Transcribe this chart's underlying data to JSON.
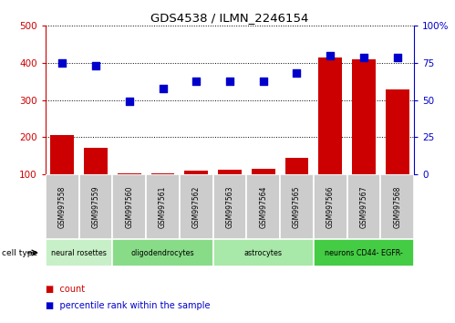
{
  "title": "GDS4538 / ILMN_2246154",
  "samples": [
    "GSM997558",
    "GSM997559",
    "GSM997560",
    "GSM997561",
    "GSM997562",
    "GSM997563",
    "GSM997564",
    "GSM997565",
    "GSM997566",
    "GSM997567",
    "GSM997568"
  ],
  "counts": [
    205,
    172,
    102,
    104,
    110,
    112,
    115,
    145,
    415,
    410,
    330
  ],
  "percentile_ranks": [
    75,
    73,
    49,
    58,
    63,
    63,
    63,
    68,
    80,
    79,
    79
  ],
  "ylim_left": [
    100,
    500
  ],
  "ylim_right": [
    0,
    100
  ],
  "yticks_left": [
    100,
    200,
    300,
    400,
    500
  ],
  "yticks_right": [
    0,
    25,
    50,
    75,
    100
  ],
  "cell_types": [
    {
      "label": "neural rosettes",
      "start": 0,
      "end": 2,
      "color": "#c8f0c8"
    },
    {
      "label": "oligodendrocytes",
      "start": 2,
      "end": 5,
      "color": "#88dc88"
    },
    {
      "label": "astrocytes",
      "start": 5,
      "end": 8,
      "color": "#a8e8a8"
    },
    {
      "label": "neurons CD44- EGFR-",
      "start": 8,
      "end": 11,
      "color": "#44cc44"
    }
  ],
  "bar_color": "#cc0000",
  "dot_color": "#0000cc",
  "bar_width": 0.7,
  "dot_size": 40,
  "left_tick_color": "#cc0000",
  "right_tick_color": "#0000cc",
  "bg_color": "#ffffff",
  "sample_bg_color": "#cccccc",
  "legend_count_label": "count",
  "legend_percentile_label": "percentile rank within the sample",
  "cell_type_label": "cell type"
}
